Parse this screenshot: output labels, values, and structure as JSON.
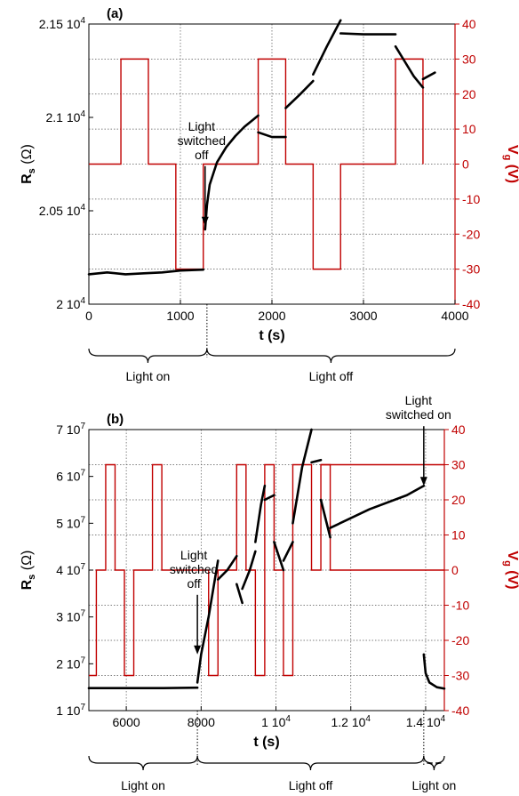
{
  "chart_data": [
    {
      "type": "line",
      "panel_label": "(a)",
      "xlabel": "t (s)",
      "ylabel_left": "R_s (Ω)",
      "ylabel_right": "V_g (V)",
      "xlim": [
        0,
        4000
      ],
      "ylim_left": [
        20000,
        21500
      ],
      "ylim_right": [
        -40,
        40
      ],
      "x_ticks": [
        "0",
        "1000",
        "2000",
        "3000",
        "4000"
      ],
      "y_left_ticks": [
        {
          "value": 20000,
          "mant": "2",
          "exp": "4"
        },
        {
          "value": 20500,
          "mant": "2.05",
          "exp": "4"
        },
        {
          "value": 21000,
          "mant": "2.1",
          "exp": "4"
        },
        {
          "value": 21500,
          "mant": "2.15",
          "exp": "4"
        }
      ],
      "y_right_ticks": [
        "-40",
        "-30",
        "-20",
        "-10",
        "0",
        "10",
        "20",
        "30",
        "40"
      ],
      "grid": true,
      "vg_series": {
        "color": "#c00000",
        "x": [
          0,
          350,
          350,
          650,
          650,
          950,
          950,
          1250,
          1250,
          1850,
          1850,
          2150,
          2150,
          2450,
          2450,
          2750,
          2750,
          3350,
          3350,
          3650,
          3650
        ],
        "y": [
          0,
          0,
          30,
          30,
          0,
          0,
          -30,
          -30,
          0,
          0,
          30,
          30,
          0,
          0,
          -30,
          -30,
          0,
          0,
          30,
          30,
          0
        ]
      },
      "rs_segments": [
        {
          "x": [
            0,
            200,
            400,
            600,
            800,
            1000,
            1250
          ],
          "y": [
            20160,
            20170,
            20160,
            20165,
            20170,
            20180,
            20185
          ]
        },
        {
          "x": [
            1270,
            1290,
            1320,
            1400,
            1500,
            1600,
            1700,
            1800,
            1850
          ],
          "y": [
            20400,
            20530,
            20640,
            20760,
            20840,
            20900,
            20950,
            20990,
            21010
          ]
        },
        {
          "x": [
            1850,
            2000,
            2150
          ],
          "y": [
            20920,
            20895,
            20895
          ]
        },
        {
          "x": [
            2150,
            2300,
            2450
          ],
          "y": [
            21050,
            21120,
            21195
          ]
        },
        {
          "x": [
            2450,
            2600,
            2750
          ],
          "y": [
            21230,
            21380,
            21520
          ]
        },
        {
          "x": [
            2750,
            3000,
            3350
          ],
          "y": [
            21450,
            21445,
            21445
          ]
        },
        {
          "x": [
            3350,
            3450,
            3550,
            3650
          ],
          "y": [
            21380,
            21300,
            21220,
            21160
          ]
        },
        {
          "x": [
            3650,
            3780
          ],
          "y": [
            21205,
            21240
          ]
        }
      ],
      "annotations": [
        {
          "lines": [
            "Light",
            "switched",
            "off"
          ],
          "x": 1270,
          "y": 20420
        }
      ],
      "phases": [
        {
          "label": "Light on",
          "x": [
            0,
            1290
          ]
        },
        {
          "label": "Light off",
          "x": [
            1290,
            4000
          ]
        }
      ]
    },
    {
      "type": "line",
      "panel_label": "(b)",
      "xlabel": "t (s)",
      "ylabel_left": "R_s (Ω)",
      "ylabel_right": "V_g (V)",
      "xlim": [
        5000,
        14500
      ],
      "ylim_left": [
        10000000,
        70000000
      ],
      "ylim_right": [
        -40,
        40
      ],
      "x_ticks": [
        {
          "value": 6000,
          "mant": "6000",
          "exp": ""
        },
        {
          "value": 8000,
          "mant": "8000",
          "exp": ""
        },
        {
          "value": 10000,
          "mant": "1 10",
          "exp": "4"
        },
        {
          "value": 12000,
          "mant": "1.2 10",
          "exp": "4"
        },
        {
          "value": 14000,
          "mant": "1.4 10",
          "exp": "4"
        }
      ],
      "y_left_ticks": [
        {
          "value": 10000000,
          "mant": "1 10",
          "exp": "7"
        },
        {
          "value": 20000000,
          "mant": "2 10",
          "exp": "7"
        },
        {
          "value": 30000000,
          "mant": "3 10",
          "exp": "7"
        },
        {
          "value": 40000000,
          "mant": "4 10",
          "exp": "7"
        },
        {
          "value": 50000000,
          "mant": "5 10",
          "exp": "7"
        },
        {
          "value": 60000000,
          "mant": "6 10",
          "exp": "7"
        },
        {
          "value": 70000000,
          "mant": "7 10",
          "exp": "7"
        }
      ],
      "y_right_ticks": [
        "-40",
        "-30",
        "-20",
        "-10",
        "0",
        "10",
        "20",
        "30",
        "40"
      ],
      "grid": true,
      "vg_series": {
        "color": "#c00000",
        "x": [
          5000,
          5200,
          5200,
          5450,
          5450,
          5700,
          5700,
          5950,
          5950,
          6200,
          6200,
          6700,
          6700,
          6950,
          6950,
          8200,
          8200,
          8450,
          8450,
          8950,
          8950,
          9200,
          9200,
          9450,
          9450,
          9700,
          9700,
          9950,
          9950,
          10200,
          10200,
          10450,
          10450,
          10950,
          10950,
          11200,
          11200,
          14500
        ],
        "y": [
          -30,
          -30,
          0,
          0,
          30,
          30,
          0,
          0,
          -30,
          -30,
          0,
          0,
          30,
          30,
          0,
          0,
          -30,
          -30,
          0,
          0,
          30,
          30,
          0,
          0,
          -30,
          -30,
          30,
          30,
          0,
          0,
          -30,
          -30,
          30,
          30,
          0,
          0,
          30,
          30
        ]
      },
      "vg_tail": {
        "x": [
          11200,
          11450,
          11450,
          14500
        ],
        "y": [
          30,
          30,
          0,
          0
        ]
      },
      "rs_segments": [
        {
          "x": [
            5000,
            6000,
            7000,
            7900
          ],
          "y": [
            14800000,
            14800000,
            14800000,
            14900000
          ]
        },
        {
          "x": [
            7900,
            8000,
            8200,
            8450
          ],
          "y": [
            16000000,
            22000000,
            30000000,
            42000000
          ]
        },
        {
          "x": [
            8450,
            8700,
            8950
          ],
          "y": [
            38000000,
            40000000,
            43000000
          ]
        },
        {
          "x": [
            8950,
            9100
          ],
          "y": [
            37000000,
            33000000
          ]
        },
        {
          "x": [
            9100,
            9300,
            9450
          ],
          "y": [
            36000000,
            40000000,
            44000000
          ]
        },
        {
          "x": [
            9450,
            9600,
            9700
          ],
          "y": [
            46000000,
            54000000,
            58000000
          ]
        },
        {
          "x": [
            9700,
            9950
          ],
          "y": [
            55000000,
            56000000
          ]
        },
        {
          "x": [
            9950,
            10200
          ],
          "y": [
            46000000,
            40000000
          ]
        },
        {
          "x": [
            10200,
            10450
          ],
          "y": [
            42000000,
            46000000
          ]
        },
        {
          "x": [
            10450,
            10700,
            10950
          ],
          "y": [
            50000000,
            62000000,
            70000000
          ]
        },
        {
          "x": [
            10950,
            11200
          ],
          "y": [
            63000000,
            63500000
          ]
        },
        {
          "x": [
            11200,
            11450
          ],
          "y": [
            55000000,
            47000000
          ]
        },
        {
          "x": [
            11450,
            12500,
            13500,
            13950
          ],
          "y": [
            49000000,
            53000000,
            56000000,
            58000000
          ]
        },
        {
          "x": [
            13950,
            14000,
            14100,
            14300,
            14500
          ],
          "y": [
            22000000,
            18000000,
            16000000,
            15000000,
            14700000
          ]
        }
      ],
      "annotations": [
        {
          "lines": [
            "Light",
            "switched",
            "off"
          ],
          "x": 7900,
          "y": 22000000
        },
        {
          "lines": [
            "Light",
            "switched on"
          ],
          "x": 13950,
          "y": 58000000
        }
      ],
      "phases": [
        {
          "label": "Light on",
          "x": [
            5000,
            7900
          ]
        },
        {
          "label": "Light off",
          "x": [
            7900,
            13950
          ]
        },
        {
          "label": "Light on",
          "x": [
            13950,
            14500
          ]
        }
      ]
    }
  ]
}
